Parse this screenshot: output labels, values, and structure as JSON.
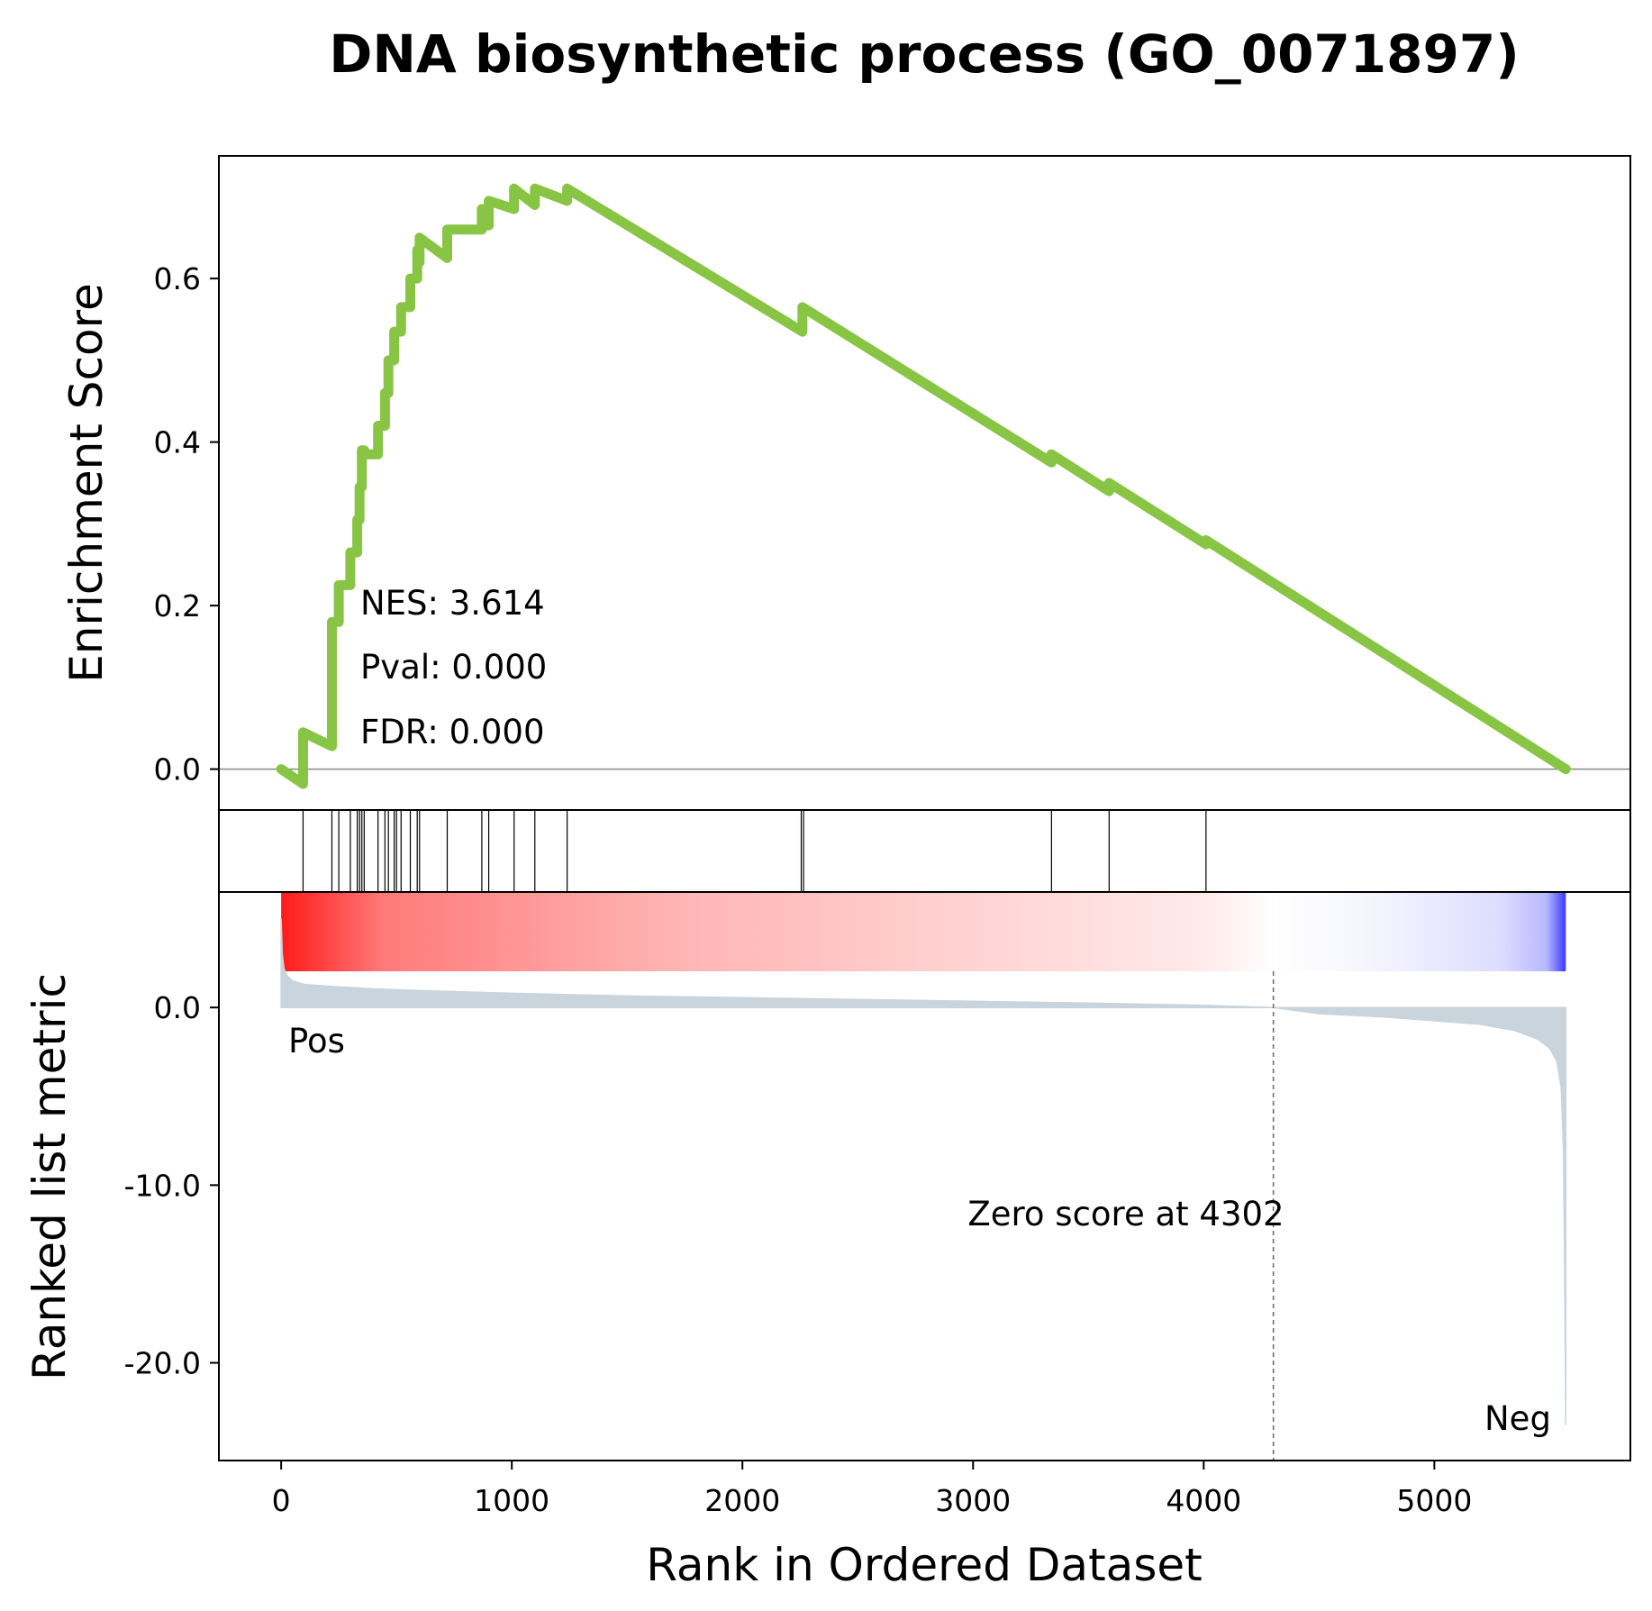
{
  "chart_data": {
    "type": "line",
    "title": "DNA biosynthetic process (GO_0071897)",
    "xlabel": "Rank in Ordered Dataset",
    "xlim": [
      -270,
      5850
    ],
    "xticks": [
      "0",
      "1000",
      "2000",
      "3000",
      "4000",
      "5000"
    ],
    "colors": {
      "es_line": "#88c544",
      "metric_fill": "#c9d4dc",
      "pos_label": "#ff0000",
      "neg_label": "#0000ff",
      "gradient_pos": "#ff0000",
      "gradient_neg": "#0000ff"
    },
    "es_panel": {
      "ylabel": "Enrichment Score",
      "ylim": [
        -0.05,
        0.75
      ],
      "yticks": [
        "0.0",
        "0.2",
        "0.4",
        "0.6"
      ],
      "stats": {
        "nes": "NES: 3.614",
        "pval": "Pval: 0.000",
        "fdr": "FDR: 0.000"
      },
      "series": [
        {
          "x": [
            0,
            95,
            95,
            220,
            220,
            250,
            250,
            300,
            300,
            330,
            330,
            340,
            340,
            350,
            350,
            360,
            360,
            420,
            420,
            450,
            450,
            465,
            465,
            490,
            490,
            500,
            500,
            520,
            520,
            560,
            560,
            590,
            590,
            600,
            600,
            600,
            600,
            720,
            720,
            870,
            870,
            900,
            900,
            1010,
            1010,
            1100,
            1100,
            1240,
            1240,
            2260,
            2260,
            3340,
            3340,
            3590,
            3590,
            4010,
            4010,
            5570
          ],
          "y": [
            0.0,
            -0.018,
            0.045,
            0.028,
            0.18,
            0.18,
            0.225,
            0.225,
            0.265,
            0.265,
            0.305,
            0.305,
            0.345,
            0.345,
            0.39,
            0.39,
            0.385,
            0.385,
            0.42,
            0.42,
            0.46,
            0.46,
            0.5,
            0.5,
            0.535,
            0.535,
            0.535,
            0.535,
            0.565,
            0.565,
            0.6,
            0.6,
            0.635,
            0.635,
            0.635,
            0.62,
            0.65,
            0.625,
            0.66,
            0.66,
            0.685,
            0.665,
            0.695,
            0.685,
            0.71,
            0.69,
            0.71,
            0.695,
            0.71,
            0.535,
            0.565,
            0.375,
            0.385,
            0.34,
            0.35,
            0.275,
            0.28,
            0.0
          ]
        }
      ]
    },
    "hits_panel": {
      "hit_ranks": [
        95,
        220,
        250,
        300,
        330,
        340,
        350,
        360,
        420,
        450,
        465,
        490,
        500,
        520,
        560,
        590,
        600,
        720,
        870,
        900,
        1010,
        1100,
        1240,
        2255,
        2265,
        3340,
        3590,
        4010
      ]
    },
    "metric_panel": {
      "ylabel": "Ranked list metric",
      "ylim": [
        -25.5,
        6.5
      ],
      "yticks": [
        "0.0",
        "-10.0",
        "-20.0"
      ],
      "pos_label": "Pos",
      "neg_label": "Neg",
      "zero_cross_rank": 4302,
      "zero_cross_label": "Zero score at 4302",
      "series": [
        {
          "x": [
            0,
            5,
            12,
            25,
            50,
            100,
            200,
            400,
            600,
            1000,
            1500,
            2000,
            2500,
            3000,
            3500,
            4000,
            4302,
            4500,
            4800,
            5000,
            5200,
            5350,
            5450,
            5500,
            5530,
            5550,
            5560,
            5565,
            5570
          ],
          "y": [
            5.0,
            3.0,
            2.2,
            1.8,
            1.5,
            1.3,
            1.2,
            1.05,
            0.95,
            0.8,
            0.65,
            0.55,
            0.45,
            0.35,
            0.25,
            0.12,
            0.0,
            -0.35,
            -0.55,
            -0.75,
            -0.95,
            -1.3,
            -1.8,
            -2.3,
            -3.0,
            -4.5,
            -8.0,
            -15.0,
            -23.5
          ]
        }
      ]
    }
  }
}
